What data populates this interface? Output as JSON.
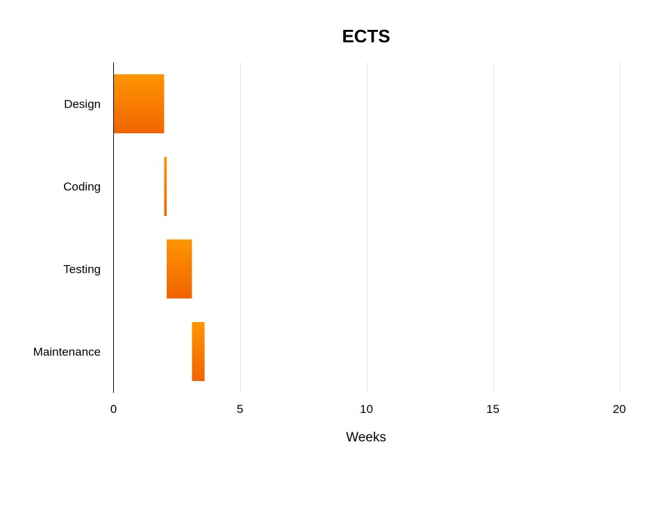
{
  "chart_data": {
    "type": "bar",
    "orientation": "horizontal",
    "subtype": "gantt",
    "title": "ECTS",
    "xlabel": "Weeks",
    "ylabel": "",
    "xlim": [
      0,
      20
    ],
    "xticks": [
      0,
      5,
      10,
      15,
      20
    ],
    "grid": true,
    "categories": [
      "Design",
      "Coding",
      "Testing",
      "Maintenance"
    ],
    "tasks": [
      {
        "name": "Design",
        "start": 0,
        "end": 2
      },
      {
        "name": "Coding",
        "start": 2,
        "end": 2.1
      },
      {
        "name": "Testing",
        "start": 2.1,
        "end": 3.1
      },
      {
        "name": "Maintenance",
        "start": 3.1,
        "end": 3.6
      }
    ],
    "colors": {
      "bar_top": "#ff9500",
      "bar_bottom": "#f06400",
      "grid": "#e4e4e4"
    }
  }
}
